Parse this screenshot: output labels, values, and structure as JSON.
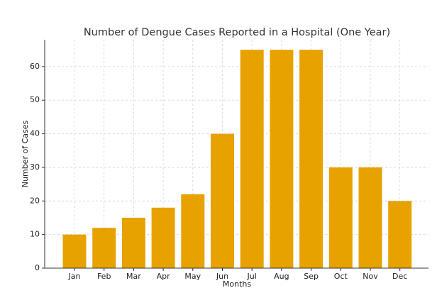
{
  "chart_data": {
    "type": "bar",
    "title": "Number of Dengue Cases Reported in a Hospital (One Year)",
    "xlabel": "Months",
    "ylabel": "Number of Cases",
    "categories": [
      "Jan",
      "Feb",
      "Mar",
      "Apr",
      "May",
      "Jun",
      "Jul",
      "Aug",
      "Sep",
      "Oct",
      "Nov",
      "Dec"
    ],
    "values": [
      10,
      12,
      15,
      18,
      22,
      40,
      65,
      65,
      65,
      30,
      30,
      20
    ],
    "ylim": [
      0,
      68
    ],
    "yticks": [
      0,
      10,
      20,
      30,
      40,
      50,
      60
    ],
    "bar_color": "#E8A200",
    "grid": true,
    "legend": "none"
  }
}
